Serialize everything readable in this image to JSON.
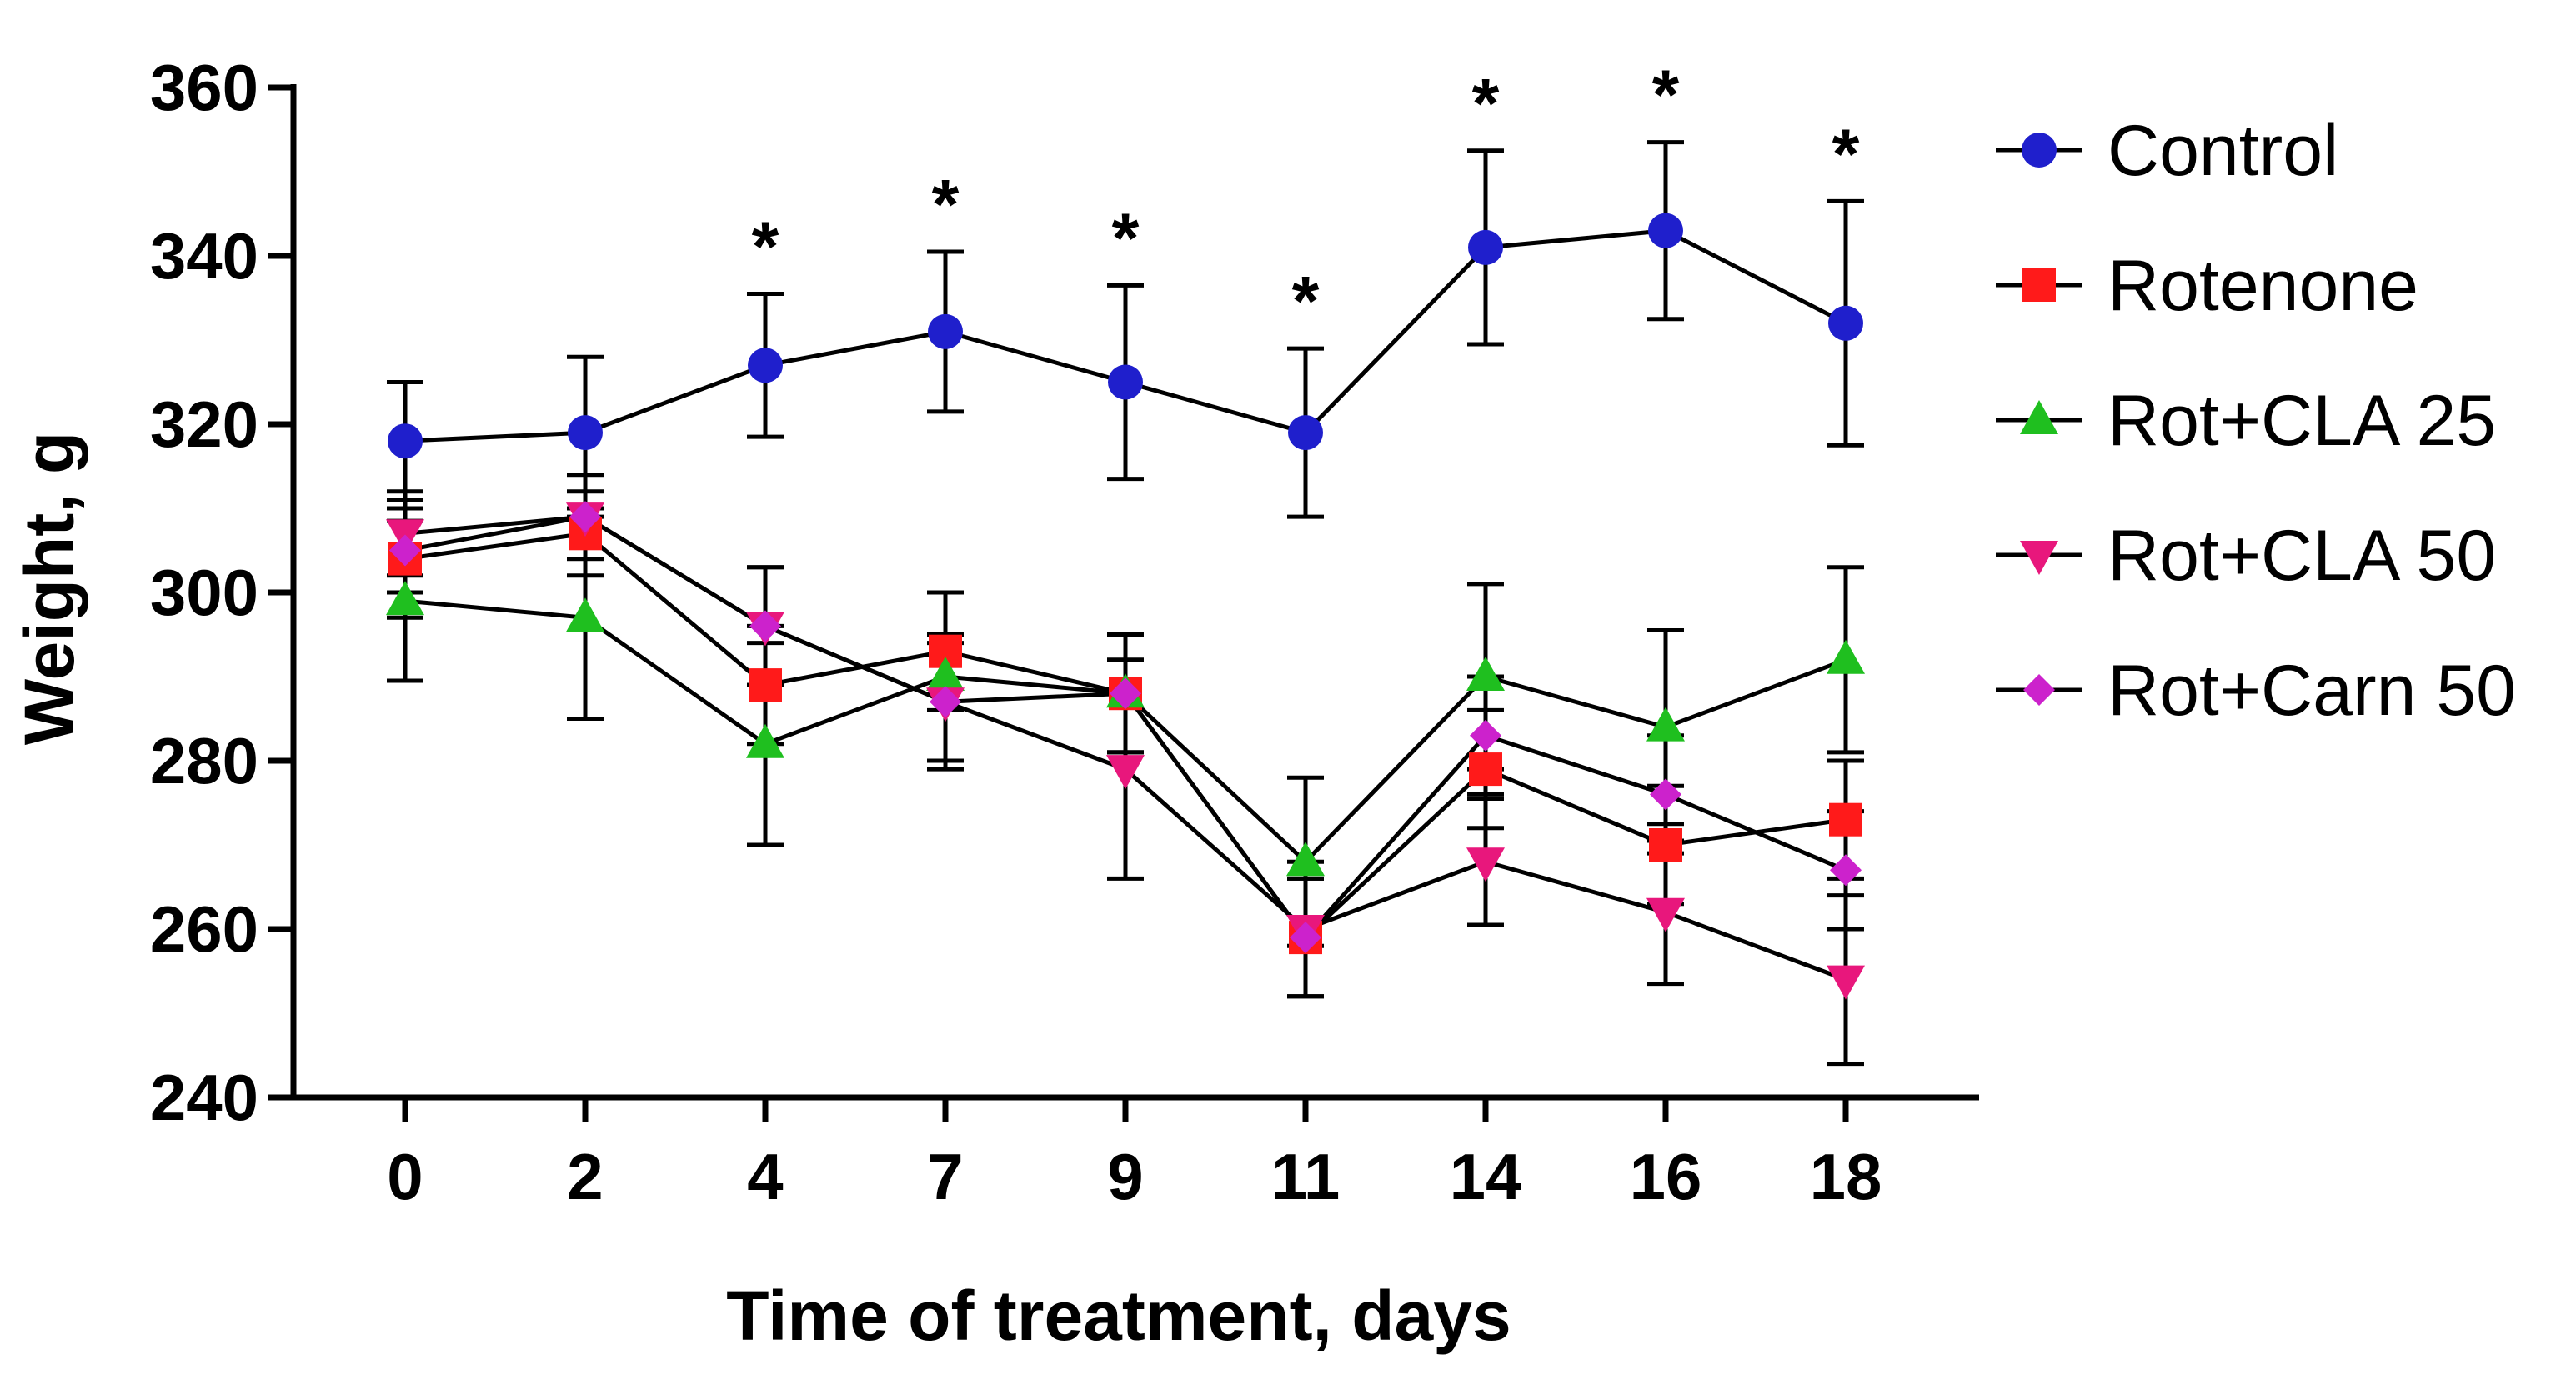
{
  "chart_data": {
    "type": "line",
    "title": "",
    "xlabel": "Time of treatment, days",
    "ylabel": "Weight, g",
    "x_categories": [
      "0",
      "2",
      "4",
      "7",
      "9",
      "11",
      "14",
      "16",
      "18"
    ],
    "ylim": [
      240,
      360
    ],
    "yticks": [
      240,
      260,
      280,
      300,
      320,
      340,
      360
    ],
    "legend_position": "right",
    "significance_marker": "*",
    "significance_at": [
      "4",
      "7",
      "9",
      "11",
      "14",
      "16",
      "18"
    ],
    "series": [
      {
        "name": "Control",
        "marker": "circle",
        "color": "#1f1fcc",
        "values": [
          318,
          319,
          327,
          331,
          325,
          319,
          341,
          343,
          332
        ],
        "errors": [
          7,
          9,
          8.5,
          9.5,
          11.5,
          10,
          11.5,
          10.5,
          14.5
        ]
      },
      {
        "name": "Rotenone",
        "marker": "square",
        "color": "#ff1a1a",
        "values": [
          304,
          307,
          289,
          293,
          288,
          259,
          279,
          270,
          273
        ],
        "errors": [
          7,
          5,
          7,
          7,
          7,
          7,
          7,
          7,
          7
        ]
      },
      {
        "name": "Rot+CLA 25",
        "marker": "triangle-up",
        "color": "#1fbf1f",
        "values": [
          299,
          297,
          282,
          290,
          288,
          268,
          290,
          284,
          292
        ],
        "errors": [
          9.5,
          12,
          12,
          10,
          7,
          10,
          11,
          11.5,
          11
        ]
      },
      {
        "name": "Rot+CLA 50",
        "marker": "triangle-down",
        "color": "#e8177c",
        "values": [
          307,
          309,
          296,
          287,
          279,
          260,
          268,
          262,
          254
        ],
        "errors": [
          5,
          5,
          7,
          8,
          13,
          8,
          7.5,
          8.5,
          10
        ]
      },
      {
        "name": "Rot+Carn 50",
        "marker": "diamond",
        "color": "#cc22cc",
        "values": [
          305,
          309,
          296,
          287,
          288,
          259,
          283,
          276,
          267
        ],
        "errors": [
          5,
          5,
          7,
          7,
          7,
          7,
          7,
          7,
          7
        ]
      }
    ]
  }
}
